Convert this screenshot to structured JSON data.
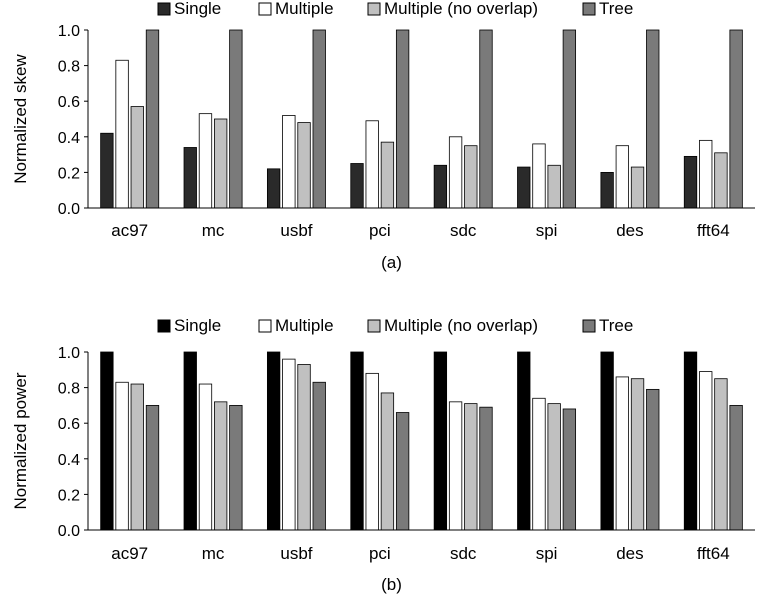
{
  "chart_data": [
    {
      "type": "bar",
      "caption": "(a)",
      "ylabel": "Normalized skew",
      "ylim": [
        0,
        1.0
      ],
      "yticks": [
        "0.0",
        "0.2",
        "0.4",
        "0.6",
        "0.8",
        "1.0"
      ],
      "categories": [
        "ac97",
        "mc",
        "usbf",
        "pci",
        "sdc",
        "spi",
        "des",
        "fft64"
      ],
      "legend_position": "top",
      "series": [
        {
          "name": "Single",
          "color": "#2a2a2a",
          "values": [
            0.42,
            0.34,
            0.22,
            0.25,
            0.24,
            0.23,
            0.2,
            0.29
          ]
        },
        {
          "name": "Multiple",
          "color": "#ffffff",
          "values": [
            0.83,
            0.53,
            0.52,
            0.49,
            0.4,
            0.36,
            0.35,
            0.38
          ]
        },
        {
          "name": "Multiple (no overlap)",
          "color": "#c0c0c0",
          "values": [
            0.57,
            0.5,
            0.48,
            0.37,
            0.35,
            0.24,
            0.23,
            0.31
          ]
        },
        {
          "name": "Tree",
          "color": "#7a7a7a",
          "values": [
            1.0,
            1.0,
            1.0,
            1.0,
            1.0,
            1.0,
            1.0,
            1.0
          ]
        }
      ]
    },
    {
      "type": "bar",
      "caption": "(b)",
      "ylabel": "Normalized power",
      "ylim": [
        0,
        1.0
      ],
      "yticks": [
        "0.0",
        "0.2",
        "0.4",
        "0.6",
        "0.8",
        "1.0"
      ],
      "categories": [
        "ac97",
        "mc",
        "usbf",
        "pci",
        "sdc",
        "spi",
        "des",
        "fft64"
      ],
      "legend_position": "top",
      "series": [
        {
          "name": "Single",
          "color": "#000000",
          "values": [
            1.0,
            1.0,
            1.0,
            1.0,
            1.0,
            1.0,
            1.0,
            1.0
          ]
        },
        {
          "name": "Multiple",
          "color": "#ffffff",
          "values": [
            0.83,
            0.82,
            0.96,
            0.88,
            0.72,
            0.74,
            0.86,
            0.89
          ]
        },
        {
          "name": "Multiple (no overlap)",
          "color": "#c0c0c0",
          "values": [
            0.82,
            0.72,
            0.93,
            0.77,
            0.71,
            0.71,
            0.85,
            0.85
          ]
        },
        {
          "name": "Tree",
          "color": "#7a7a7a",
          "values": [
            0.7,
            0.7,
            0.83,
            0.66,
            0.69,
            0.68,
            0.79,
            0.7
          ]
        }
      ]
    }
  ]
}
